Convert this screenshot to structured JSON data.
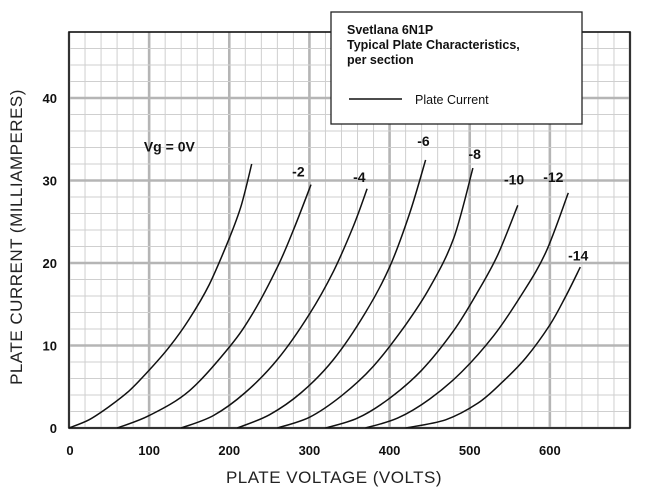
{
  "chart_data": {
    "type": "line",
    "title_lines": [
      "Svetlana 6N1P",
      "Typical Plate Characteristics,",
      "per section"
    ],
    "xlabel": "PLATE VOLTAGE (VOLTS)",
    "ylabel": "PLATE CURRENT (MILLIAMPERES)",
    "xlim": [
      0,
      700
    ],
    "ylim": [
      0,
      48
    ],
    "grid": true,
    "x_ticks": [
      0,
      100,
      200,
      300,
      400,
      500,
      600
    ],
    "y_ticks": [
      0,
      10,
      20,
      30,
      40
    ],
    "legend": {
      "placement": "top-right",
      "entries": [
        "Plate Current"
      ]
    },
    "series": [
      {
        "name": "Vg = 0V",
        "x": [
          0,
          25,
          50,
          75,
          100,
          125,
          150,
          175,
          200,
          215,
          228
        ],
        "y": [
          0,
          1,
          2.6,
          4.5,
          7,
          9.8,
          13.2,
          17.4,
          23,
          27,
          32
        ]
      },
      {
        "name": "-2",
        "x": [
          60,
          100,
          150,
          200,
          230,
          260,
          280,
          302
        ],
        "y": [
          0,
          1.5,
          4.5,
          9.8,
          14,
          19.5,
          24,
          29.5
        ]
      },
      {
        "name": "-4",
        "x": [
          140,
          180,
          220,
          260,
          300,
          330,
          355,
          372
        ],
        "y": [
          0,
          1.5,
          4.3,
          8.3,
          13.8,
          19,
          24.5,
          29
        ]
      },
      {
        "name": "-6",
        "x": [
          210,
          250,
          290,
          330,
          370,
          400,
          425,
          445
        ],
        "y": [
          0,
          1.6,
          4.3,
          8.3,
          14,
          19.5,
          26,
          32.5
        ]
      },
      {
        "name": "-8",
        "x": [
          260,
          300,
          340,
          380,
          420,
          450,
          480,
          504
        ],
        "y": [
          0,
          1.3,
          3.9,
          7.5,
          12.5,
          17,
          23,
          31.5
        ]
      },
      {
        "name": "-10",
        "x": [
          320,
          360,
          400,
          440,
          480,
          510,
          535,
          560
        ],
        "y": [
          0,
          1.2,
          3.6,
          7,
          11.8,
          16.5,
          21,
          27
        ]
      },
      {
        "name": "-12",
        "x": [
          370,
          410,
          450,
          490,
          530,
          565,
          595,
          623
        ],
        "y": [
          0,
          1.2,
          3.5,
          6.8,
          11.2,
          16.2,
          21.3,
          28.5
        ]
      },
      {
        "name": "-14",
        "x": [
          420,
          470,
          510,
          540,
          570,
          600,
          620,
          638
        ],
        "y": [
          0,
          1,
          3,
          5.5,
          8.5,
          12.5,
          16,
          19.5
        ]
      }
    ],
    "curve_labels": [
      {
        "text": "Vg = 0V",
        "x": 157,
        "y": 33.5
      },
      {
        "text": "-2",
        "x": 294,
        "y": 30.5
      },
      {
        "text": "-4",
        "x": 370,
        "y": 29.8
      },
      {
        "text": "-6",
        "x": 450,
        "y": 34.2
      },
      {
        "text": "-8",
        "x": 514,
        "y": 32.6
      },
      {
        "text": "-10",
        "x": 568,
        "y": 29.5
      },
      {
        "text": "-12",
        "x": 617,
        "y": 29.8
      },
      {
        "text": "-14",
        "x": 648,
        "y": 20.3
      }
    ]
  }
}
